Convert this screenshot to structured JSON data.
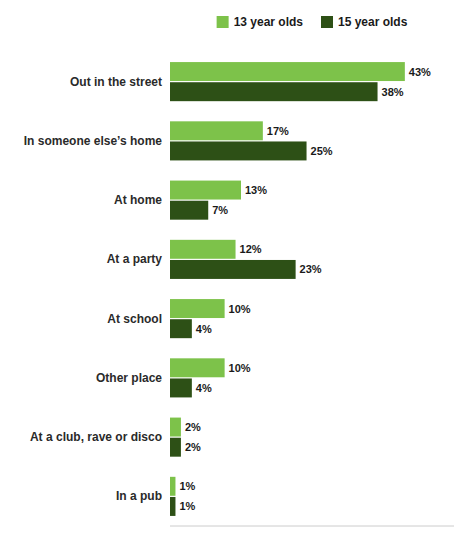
{
  "chart_data": {
    "type": "bar",
    "orientation": "horizontal",
    "categories": [
      "Out in the street",
      "In someone else’s home",
      "At home",
      "At a party",
      "At school",
      "Other place",
      "At a club, rave or disco",
      "In a pub"
    ],
    "series": [
      {
        "name": "13 year olds",
        "color": "#7dc24a",
        "values": [
          43,
          17,
          13,
          12,
          10,
          10,
          2,
          1
        ],
        "value_labels": [
          "43%",
          "17%",
          "13%",
          "12%",
          "10%",
          "10%",
          "2%",
          "1%"
        ]
      },
      {
        "name": "15 year olds",
        "color": "#2d5016",
        "values": [
          38,
          25,
          7,
          23,
          4,
          4,
          2,
          1
        ],
        "value_labels": [
          "38%",
          "25%",
          "7%",
          "23%",
          "4%",
          "4%",
          "2%",
          "1%"
        ]
      }
    ],
    "xlim": [
      0,
      52
    ],
    "data_labels": true,
    "tick_labels": "y",
    "grid": false,
    "legend": "top"
  }
}
